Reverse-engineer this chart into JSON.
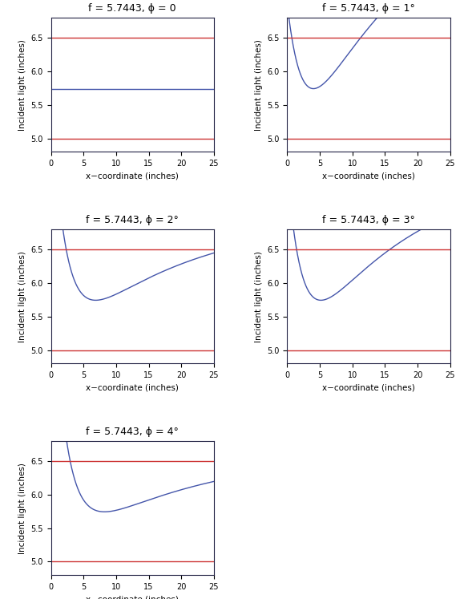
{
  "f": 5.7443,
  "phi_values": [
    0,
    1,
    2,
    3,
    4
  ],
  "red_line_low": 5.0,
  "red_line_high": 6.5,
  "x_min": 0,
  "x_max": 25,
  "y_min": 4.8,
  "y_max": 6.8,
  "yticks": [
    5.0,
    5.5,
    6.0,
    6.5
  ],
  "xticks": [
    0,
    5,
    10,
    15,
    20,
    25
  ],
  "xlabel": "x−coordinate (inches)",
  "ylabel": "Incident light (inches)",
  "blue_color": "#4455aa",
  "red_color": "#cc3333",
  "fig_width": 5.79,
  "fig_height": 7.47,
  "dpi": 100,
  "n_points": 1000,
  "phi_scale": 35.0,
  "background": "#ffffff",
  "title_fontsize": 9,
  "label_fontsize": 7.5,
  "tick_fontsize": 7,
  "linewidth": 1.0
}
